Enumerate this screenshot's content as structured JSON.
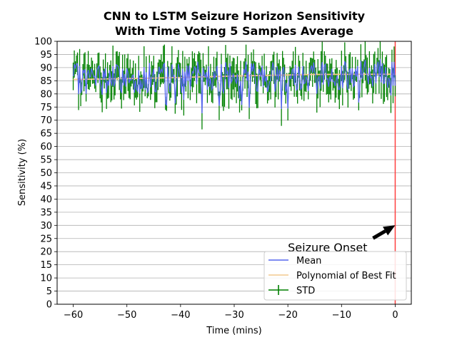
{
  "chart_data": {
    "type": "line",
    "title_lines": [
      "CNN to LSTM Seizure Horizon Sensitivity",
      "With Time Voting 5 Samples Average"
    ],
    "xlabel": "Time (mins)",
    "ylabel": "Sensitivity (%)",
    "xlim": [
      -63,
      3
    ],
    "ylim": [
      0,
      100
    ],
    "xticks": [
      -60,
      -50,
      -40,
      -30,
      -20,
      -10,
      0
    ],
    "yticks": [
      0,
      5,
      10,
      15,
      20,
      25,
      30,
      35,
      40,
      45,
      50,
      55,
      60,
      65,
      70,
      75,
      80,
      85,
      90,
      95,
      100
    ],
    "grid": "horizontal",
    "legend_position": "lower-right",
    "colors": {
      "mean": "#5566ee",
      "fit": "#f2c88e",
      "std": "#008000",
      "onset": "#ff4040",
      "grid": "#b0b0b0"
    },
    "seizure_onset_x": 0,
    "annotation": {
      "text": "Seizure Onset",
      "text_x": -20,
      "text_y": 20,
      "arrow_to_x": 0,
      "arrow_to_y": 30
    },
    "fit_curve": [
      {
        "x": -60,
        "y": 85.5
      },
      {
        "x": -45,
        "y": 86.0
      },
      {
        "x": -30,
        "y": 86.8
      },
      {
        "x": -15,
        "y": 87.4
      },
      {
        "x": 0,
        "y": 87.5
      }
    ],
    "series": [
      {
        "name": "Mean",
        "kind": "line"
      },
      {
        "name": "Polynomial of Best Fit",
        "kind": "line"
      },
      {
        "name": "STD",
        "kind": "errorbar"
      }
    ]
  }
}
